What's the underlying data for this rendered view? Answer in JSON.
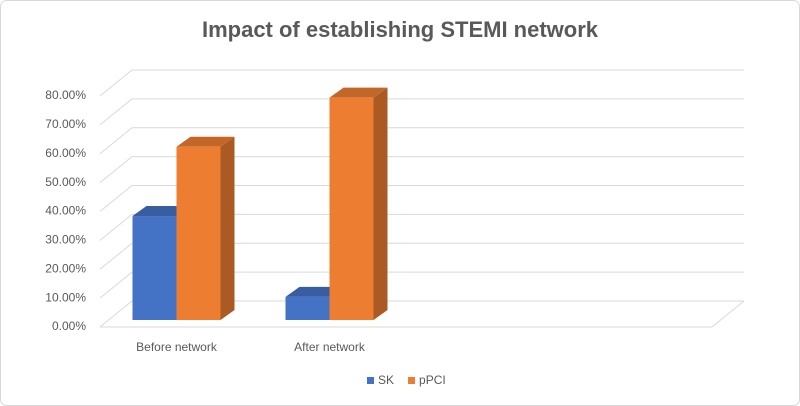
{
  "chart_data": {
    "type": "bar3d",
    "title": "Impact of establishing STEMI network",
    "categories": [
      "Before network",
      "After network",
      null,
      null
    ],
    "series": [
      {
        "name": "SK",
        "color": "#4472c4",
        "values": [
          36,
          8,
          null,
          null
        ]
      },
      {
        "name": "pPCI",
        "color": "#ed7d31",
        "values": [
          60,
          77,
          null,
          null
        ]
      }
    ],
    "ylim": [
      0,
      80
    ],
    "yticks": [
      {
        "value": 0,
        "label": "0.00%"
      },
      {
        "value": 10,
        "label": "10.00%"
      },
      {
        "value": 20,
        "label": "20.00%"
      },
      {
        "value": 30,
        "label": "30.00%"
      },
      {
        "value": 40,
        "label": "40.00%"
      },
      {
        "value": 50,
        "label": "50.00%"
      },
      {
        "value": 60,
        "label": "60.00%"
      },
      {
        "value": 70,
        "label": "70.00%"
      },
      {
        "value": 80,
        "label": "80.00%"
      }
    ],
    "grid": true,
    "legend": "bottom"
  }
}
